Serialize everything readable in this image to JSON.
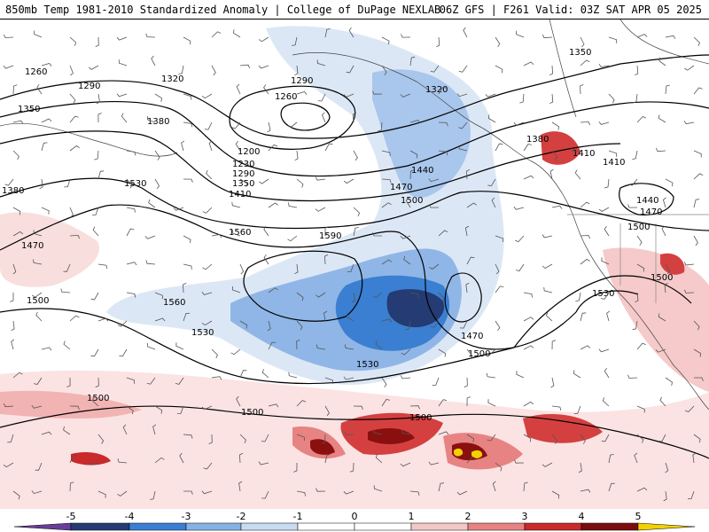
{
  "header": {
    "title_left": "850mb Temp 1981-2010 Standardized Anomaly | College of DuPage NEXLAB",
    "title_right": "06Z GFS | F261 Valid: 03Z SAT APR 05 2025"
  },
  "colorbar": {
    "tick_labels": [
      "-5",
      "-4",
      "-3",
      "-2",
      "-1",
      "0",
      "1",
      "2",
      "3",
      "4",
      "5"
    ],
    "colors": [
      "#6a3d9a",
      "#243b73",
      "#3a7fd1",
      "#86b1e3",
      "#c9dbf2",
      "#ffffff",
      "#ffffff",
      "#f4c7c7",
      "#e88383",
      "#c92a2a",
      "#7a0d0d",
      "#f2d200"
    ]
  },
  "contour_labels": [
    "1260",
    "1290",
    "1320",
    "1350",
    "1380",
    "1290",
    "1260",
    "1200",
    "1230",
    "1290",
    "1350",
    "1410",
    "1530",
    "1560",
    "1590",
    "1440",
    "1470",
    "1500",
    "1320",
    "1380",
    "1410",
    "1410",
    "1350",
    "1440",
    "1470",
    "1500",
    "1530",
    "1380",
    "1470",
    "1500",
    "1560",
    "1530",
    "1530",
    "1470",
    "1500",
    "1500",
    "1500",
    "1500",
    "1500"
  ],
  "colors": {
    "cold_strong": "#243b73",
    "cold_mid": "#3a7fd1",
    "cold_light": "#86b1e3",
    "cold_faint": "#d3e2f5",
    "warm_faint": "#f9dede",
    "warm_light": "#f0a3a3",
    "warm_mid": "#d44040",
    "warm_strong": "#8a1010",
    "warm_extreme": "#f2d200"
  }
}
